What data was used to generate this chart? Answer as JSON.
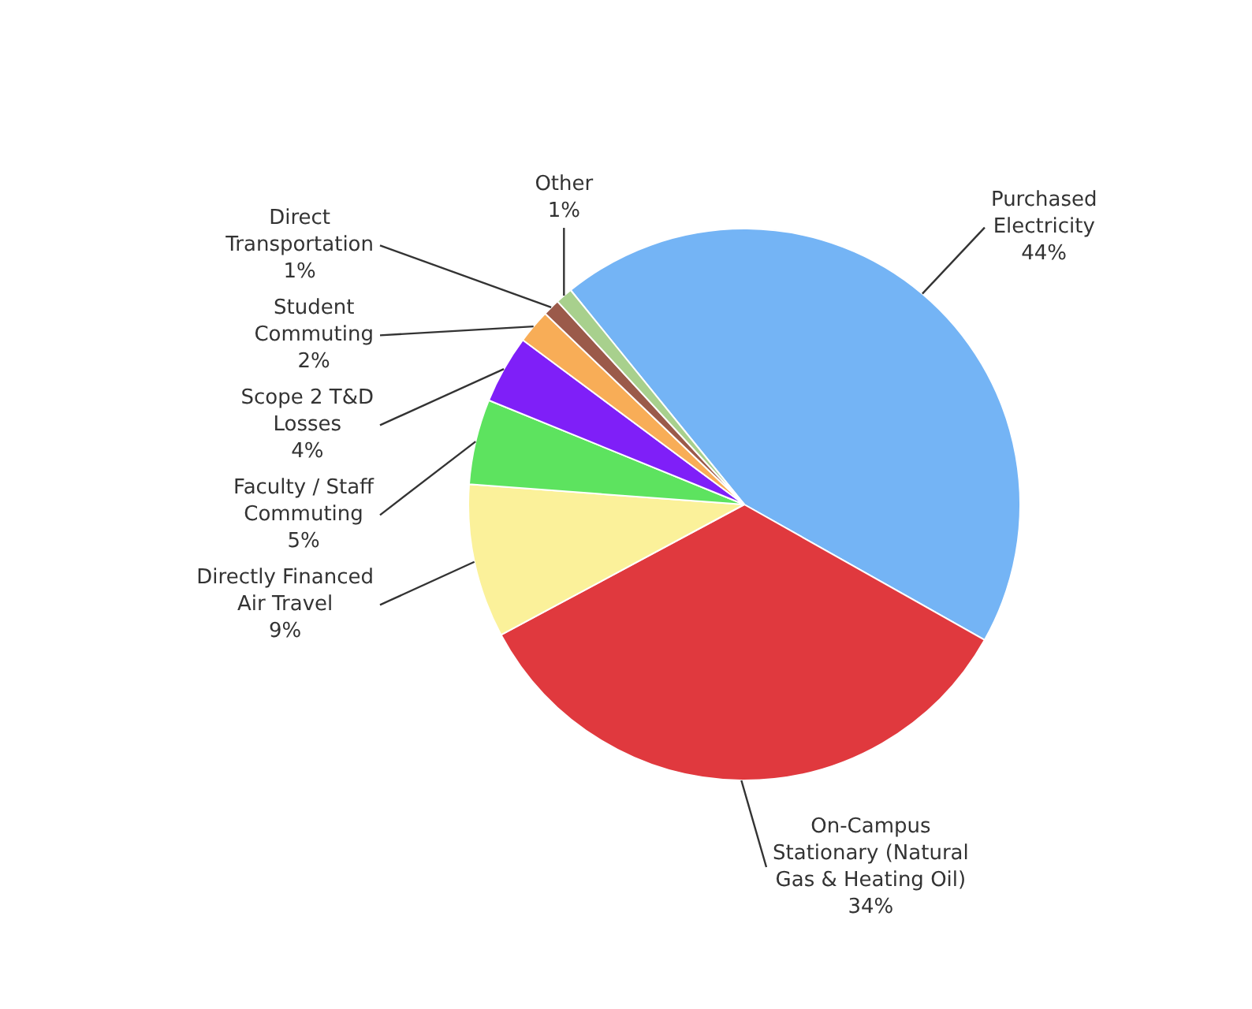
{
  "chart_data": {
    "type": "pie",
    "categories": [
      "Purchased Electricity",
      "On-Campus Stationary (Natural Gas & Heating Oil)",
      "Directly Financed Air Travel",
      "Faculty / Staff Commuting",
      "Scope 2 T&D Losses",
      "Student Commuting",
      "Direct Transportation",
      "Other"
    ],
    "values": [
      44,
      34,
      9,
      5,
      4,
      2,
      1,
      1
    ],
    "colors": [
      "#74b4f5",
      "#e0393e",
      "#fbf19a",
      "#5de35f",
      "#7f1ff8",
      "#f8ad57",
      "#9b5a4a",
      "#a8d08d"
    ],
    "value_labels": [
      "44%",
      "34%",
      "9%",
      "5%",
      "4%",
      "2%",
      "1%",
      "1%"
    ],
    "legend": false
  }
}
